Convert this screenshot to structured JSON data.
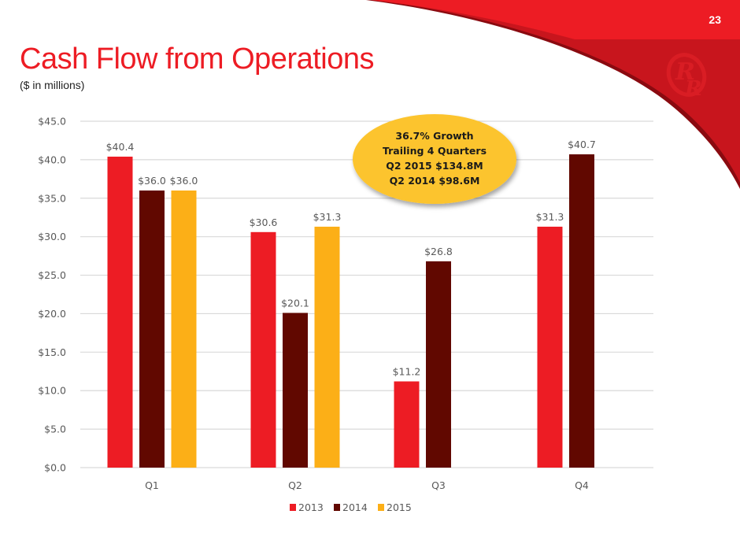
{
  "slide": {
    "page_number": "23",
    "title": "Cash Flow from Operations",
    "subtitle": "($ in millions)",
    "logo": "rr-logo-icon"
  },
  "callout": {
    "lines": [
      "36.7% Growth",
      "Trailing 4 Quarters",
      "Q2 2015 $134.8M",
      "Q2 2014 $98.6M"
    ],
    "color": "#fcc42d"
  },
  "colors": {
    "brand_red": "#ed1c24",
    "dark_red": "#c8151d"
  },
  "chart_data": {
    "type": "bar",
    "title": "Cash Flow from Operations",
    "subtitle": "($ in millions)",
    "xlabel": "",
    "ylabel": "",
    "categories": [
      "Q1",
      "Q2",
      "Q3",
      "Q4"
    ],
    "series": [
      {
        "name": "2013",
        "color": "#ed1c24",
        "values": [
          40.4,
          30.6,
          11.2,
          31.3
        ],
        "labels": [
          "$40.4",
          "$30.6",
          "$11.2",
          "$31.3"
        ]
      },
      {
        "name": "2014",
        "color": "#610800",
        "values": [
          36.0,
          20.1,
          26.8,
          40.7
        ],
        "labels": [
          "$36.0",
          "$20.1",
          "$26.8",
          "$40.7"
        ]
      },
      {
        "name": "2015",
        "color": "#fcaf17",
        "values": [
          36.0,
          31.3,
          null,
          null
        ],
        "labels": [
          "$36.0",
          "$31.3",
          null,
          null
        ]
      }
    ],
    "ylim": [
      0,
      45
    ],
    "yticks": [
      0,
      5,
      10,
      15,
      20,
      25,
      30,
      35,
      40,
      45
    ],
    "ytick_labels": [
      "$0.0",
      "$5.0",
      "$10.0",
      "$15.0",
      "$20.0",
      "$25.0",
      "$30.0",
      "$35.0",
      "$40.0",
      "$45.0"
    ],
    "grid": true,
    "legend_position": "bottom"
  }
}
